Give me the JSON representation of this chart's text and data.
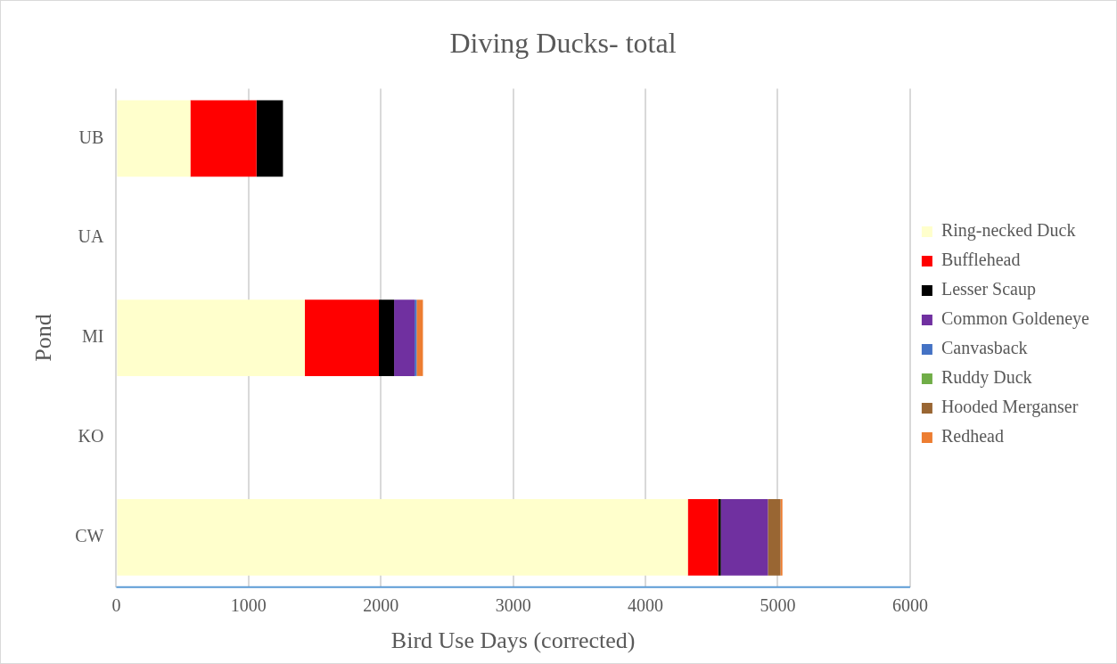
{
  "chart_data": {
    "type": "bar",
    "orientation": "horizontal",
    "stacked": true,
    "title": "Diving Ducks- total",
    "xlabel": "Bird Use Days (corrected)",
    "ylabel": "Pond",
    "categories": [
      "UB",
      "UA",
      "MI",
      "KO",
      "CW"
    ],
    "series": [
      {
        "name": "Ring-necked Duck",
        "color": "#ffffcc",
        "values": [
          560,
          null,
          1425,
          null,
          4320
        ]
      },
      {
        "name": "Bufflehead",
        "color": "#ff0000",
        "values": [
          500,
          null,
          560,
          null,
          230
        ]
      },
      {
        "name": "Lesser Scaup",
        "color": "#000000",
        "values": [
          200,
          null,
          115,
          null,
          20
        ]
      },
      {
        "name": "Common Goldeneye",
        "color": "#7030a0",
        "values": [
          null,
          null,
          155,
          null,
          355
        ]
      },
      {
        "name": "Canvasback",
        "color": "#4472c4",
        "values": [
          null,
          null,
          15,
          null,
          null
        ]
      },
      {
        "name": "Ruddy Duck",
        "color": "#70ad47",
        "values": [
          null,
          null,
          null,
          null,
          null
        ]
      },
      {
        "name": "Hooded Merganser",
        "color": "#996633",
        "values": [
          null,
          null,
          null,
          null,
          95
        ]
      },
      {
        "name": "Redhead",
        "color": "#ed7d31",
        "values": [
          null,
          null,
          48,
          null,
          15
        ]
      }
    ],
    "xlim": [
      0,
      6000
    ],
    "xticks": [
      0,
      1000,
      2000,
      3000,
      4000,
      5000,
      6000
    ],
    "grid": "x",
    "legend": "right"
  }
}
